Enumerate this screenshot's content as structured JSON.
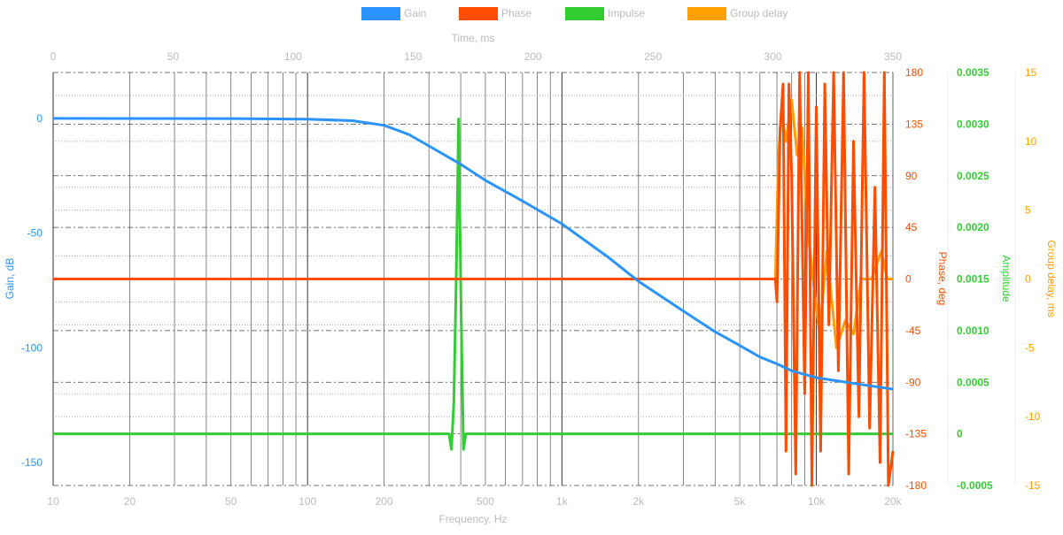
{
  "chart_data": {
    "type": "line",
    "legend": {
      "placement": "top-center",
      "items": [
        {
          "label": "Gain",
          "color": "#2b93ff"
        },
        {
          "label": "Phase",
          "color": "#ff4d00"
        },
        {
          "label": "Impulse",
          "color": "#33cc33"
        },
        {
          "label": "Group delay",
          "color": "#ff9f00"
        }
      ]
    },
    "top_axis": {
      "label": "Time, ms",
      "range": [
        0,
        350
      ],
      "ticks": [
        "0",
        "50",
        "100",
        "150",
        "200",
        "250",
        "300",
        "350"
      ]
    },
    "x_axis": {
      "label": "Frequency, Hz",
      "scale": "log",
      "range": [
        10,
        20000
      ],
      "ticks": [
        {
          "value": 10,
          "label": "10"
        },
        {
          "value": 20,
          "label": "20"
        },
        {
          "value": 50,
          "label": "50"
        },
        {
          "value": 100,
          "label": "100"
        },
        {
          "value": 200,
          "label": "200"
        },
        {
          "value": 500,
          "label": "500"
        },
        {
          "value": 1000,
          "label": "1k"
        },
        {
          "value": 2000,
          "label": "2k"
        },
        {
          "value": 5000,
          "label": "5k"
        },
        {
          "value": 10000,
          "label": "10k"
        },
        {
          "value": 20000,
          "label": "20k"
        }
      ]
    },
    "y_axes": [
      {
        "id": "gain",
        "label": "Gain, dB",
        "color": "#2b93ff",
        "range": [
          -160,
          20
        ],
        "ticks": [
          "0",
          "-50",
          "-100",
          "-150"
        ]
      },
      {
        "id": "phase",
        "label": "Phase, deg",
        "color": "#ff4d00",
        "range": [
          -180,
          180
        ],
        "ticks": [
          "180",
          "135",
          "90",
          "45",
          "0",
          "-45",
          "-90",
          "-135",
          "-180"
        ]
      },
      {
        "id": "amplitude",
        "label": "Amplitude",
        "color": "#33cc33",
        "range": [
          -0.0005,
          0.0035
        ],
        "ticks": [
          "0.0035",
          "0.0030",
          "0.0025",
          "0.0020",
          "0.0015",
          "0.0010",
          "0.0005",
          "0",
          "-0.0005"
        ]
      },
      {
        "id": "group_delay",
        "label": "Group delay, ms",
        "color": "#ff9f00",
        "range": [
          -15,
          15
        ],
        "ticks": [
          "15",
          "10",
          "5",
          "0",
          "-5",
          "-10",
          "-15"
        ]
      }
    ],
    "series": [
      {
        "name": "Gain",
        "axis": "gain",
        "x_unit": "Hz",
        "points": [
          [
            10,
            0
          ],
          [
            50,
            -0.1
          ],
          [
            100,
            -0.3
          ],
          [
            150,
            -1
          ],
          [
            200,
            -3
          ],
          [
            250,
            -7
          ],
          [
            300,
            -12
          ],
          [
            400,
            -20
          ],
          [
            500,
            -27
          ],
          [
            700,
            -36
          ],
          [
            1000,
            -46
          ],
          [
            1500,
            -60
          ],
          [
            2000,
            -71
          ],
          [
            3000,
            -84
          ],
          [
            4000,
            -93
          ],
          [
            5000,
            -99
          ],
          [
            6000,
            -104
          ],
          [
            7000,
            -107
          ],
          [
            8000,
            -110
          ],
          [
            10000,
            -113
          ],
          [
            15000,
            -116
          ],
          [
            20000,
            -118
          ]
        ]
      },
      {
        "name": "Phase",
        "axis": "phase",
        "x_unit": "Hz",
        "points": [
          [
            10,
            0
          ],
          [
            6900,
            0
          ],
          [
            7000,
            -20
          ],
          [
            7200,
            130
          ],
          [
            7400,
            170
          ],
          [
            7600,
            -150
          ],
          [
            7800,
            170
          ],
          [
            8000,
            90
          ],
          [
            8300,
            -170
          ],
          [
            8600,
            180
          ],
          [
            9000,
            -100
          ],
          [
            9300,
            180
          ],
          [
            9600,
            -180
          ],
          [
            10000,
            150
          ],
          [
            10400,
            -150
          ],
          [
            10800,
            170
          ],
          [
            11200,
            -40
          ],
          [
            11700,
            180
          ],
          [
            12200,
            -80
          ],
          [
            12800,
            180
          ],
          [
            13400,
            -170
          ],
          [
            14000,
            120
          ],
          [
            14700,
            -120
          ],
          [
            15400,
            180
          ],
          [
            16200,
            -130
          ],
          [
            17000,
            80
          ],
          [
            17800,
            -160
          ],
          [
            18500,
            180
          ],
          [
            19200,
            -180
          ],
          [
            20000,
            -150
          ]
        ]
      },
      {
        "name": "Impulse",
        "axis": "amplitude",
        "x_unit": "ms",
        "points": [
          [
            0,
            0
          ],
          [
            165,
            0
          ],
          [
            166,
            -0.00015
          ],
          [
            167,
            0.0003
          ],
          [
            168,
            0.0015
          ],
          [
            169,
            0.00305
          ],
          [
            170,
            0.0012
          ],
          [
            171,
            -0.00015
          ],
          [
            172,
            0
          ],
          [
            350,
            0
          ]
        ]
      },
      {
        "name": "Group delay",
        "axis": "group_delay",
        "x_unit": "Hz",
        "points": [
          [
            10,
            0
          ],
          [
            6900,
            0
          ],
          [
            7100,
            9
          ],
          [
            7300,
            12
          ],
          [
            7600,
            10
          ],
          [
            8000,
            13
          ],
          [
            8400,
            9
          ],
          [
            8800,
            11
          ],
          [
            9200,
            4
          ],
          [
            9700,
            0
          ],
          [
            10300,
            -4
          ],
          [
            11000,
            2
          ],
          [
            12000,
            -5
          ],
          [
            13000,
            -3
          ],
          [
            14000,
            -4
          ],
          [
            15000,
            0
          ],
          [
            16500,
            0
          ],
          [
            18000,
            2
          ],
          [
            19000,
            0
          ],
          [
            20000,
            0
          ]
        ]
      }
    ],
    "grid": true
  }
}
